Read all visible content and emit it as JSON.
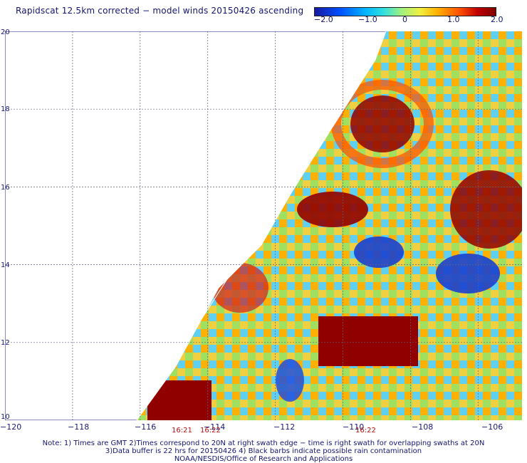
{
  "title": "Rapidscat 12.5km corrected − model winds 20150426 ascending",
  "colorbar": {
    "ticks": [
      "−2.0",
      "−1.0",
      "0",
      "1.0",
      "2.0"
    ],
    "colors": [
      "#1a1aa0",
      "#0050ff",
      "#00b4ff",
      "#30e0e0",
      "#a0f080",
      "#f0f040",
      "#ffb000",
      "#ff5000",
      "#c00000",
      "#800000"
    ]
  },
  "axes": {
    "x_ticks": [
      "−120",
      "−118",
      "−116",
      "−114",
      "−112",
      "−110",
      "−108",
      "−106"
    ],
    "y_ticks": [
      "10",
      "12",
      "14",
      "16",
      "18",
      "20"
    ],
    "lon_range": [
      -120,
      -104.7
    ],
    "lat_range": [
      10,
      20
    ]
  },
  "swath_times": {
    "t1": "16:21",
    "t2": "16:22",
    "t3": "16:22"
  },
  "notes": {
    "line1": "Note: 1) Times are GMT 2)Times correspond to 20N at right swath edge − time is right swath for overlapping swaths at 20N",
    "line2": "3)Data buffer is 22 hrs for 20150426 4) Black barbs indicate possible rain contamination",
    "line3": "NOAA/NESDIS/Office of Research and Applications"
  }
}
